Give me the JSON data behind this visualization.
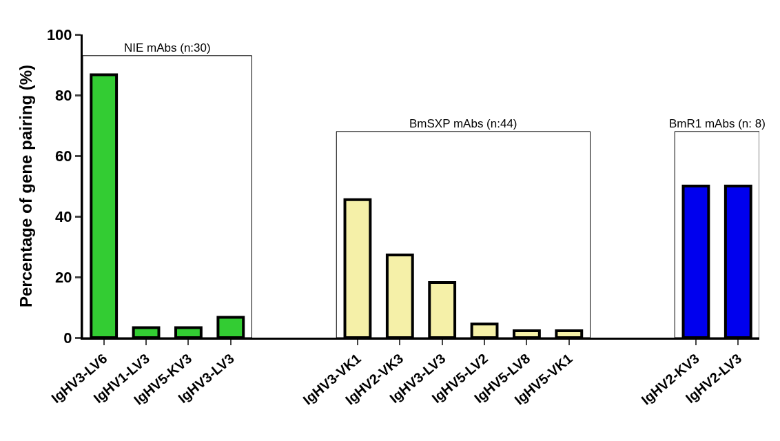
{
  "chart_data": {
    "type": "bar",
    "ylabel": "Percentage of gene pairing (%)",
    "categories": [
      "IgHV3-LV6",
      "IgHV1-LV3",
      "IgHV5-KV3",
      "IgHV3-LV3",
      null,
      null,
      "IgHV3-VK1",
      "IgHV2-VK3",
      "IgHV3-LV3",
      "IgHV5-LV2",
      "IgHV5-LV8",
      "IgHV5-VK1",
      null,
      null,
      "IgHV2-KV3",
      "IgHV2-LV3"
    ],
    "values": [
      86.7,
      3.3,
      3.3,
      6.7,
      null,
      null,
      45.5,
      27.3,
      18.2,
      4.5,
      2.3,
      2.3,
      null,
      null,
      50,
      50
    ],
    "colors": [
      "#33cc33",
      "#33cc33",
      "#33cc33",
      "#33cc33",
      "#ffffff",
      "#ffffff",
      "#f5f0a8",
      "#f5f0a8",
      "#f5f0a8",
      "#f5f0a8",
      "#f5f0a8",
      "#f5f0a8",
      "#ffffff",
      "#ffffff",
      "#0000ee",
      "#0000ee"
    ],
    "ylim": [
      0,
      100
    ],
    "yticks": [
      0,
      20,
      40,
      60,
      80,
      100
    ],
    "grid": false,
    "annotations": [
      "NIE mAbs (n:30)",
      "BmSXP mAbs (n:44)",
      "BmR1 mAbs (n: 8)"
    ]
  }
}
